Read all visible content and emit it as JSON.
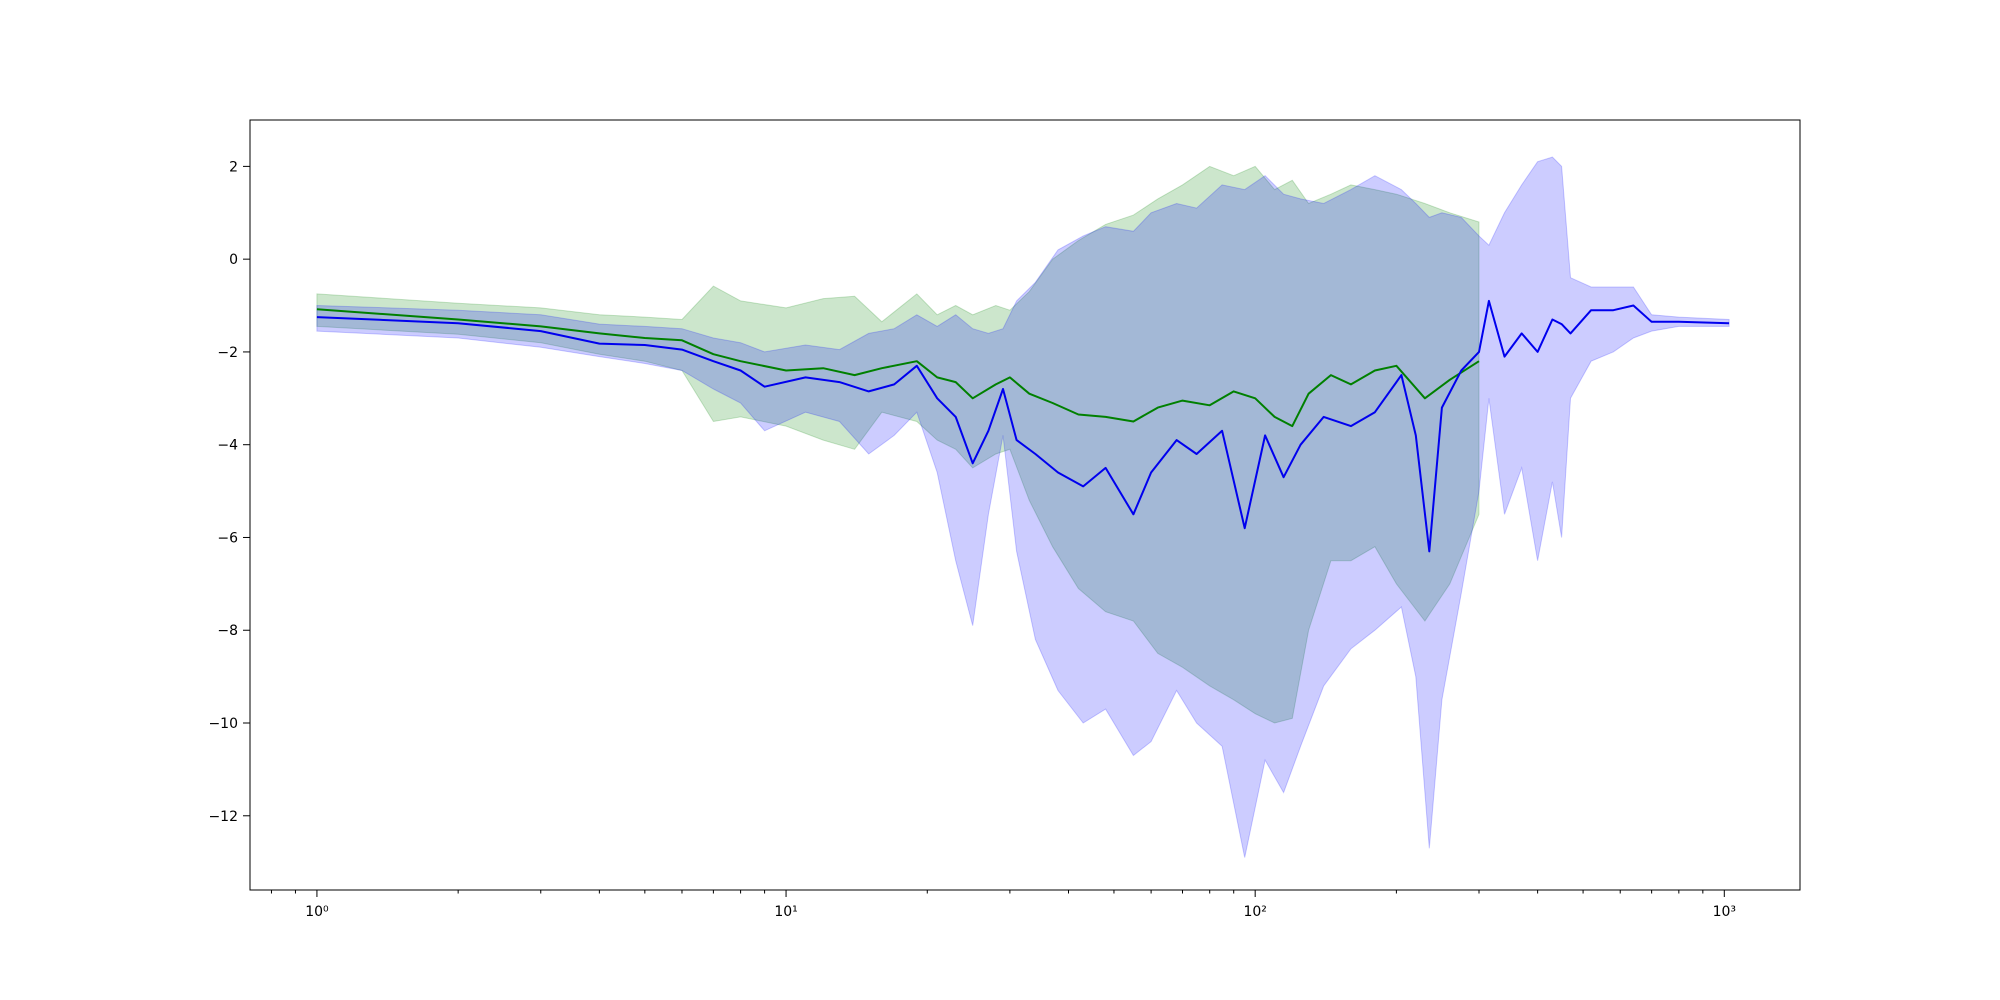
{
  "chart_data": {
    "type": "line",
    "title": "",
    "xlabel": "",
    "ylabel": "",
    "x_scale": "log",
    "xlim": [
      0.72,
      1450
    ],
    "ylim": [
      -13.6,
      3.0
    ],
    "grid": false,
    "legend": "none",
    "x_major_ticks": [
      {
        "value": 1,
        "label": "10⁰"
      },
      {
        "value": 10,
        "label": "10¹"
      },
      {
        "value": 100,
        "label": "10²"
      },
      {
        "value": 1000,
        "label": "10³"
      }
    ],
    "y_ticks": [
      {
        "value": 2,
        "label": "2"
      },
      {
        "value": 0,
        "label": "0"
      },
      {
        "value": -2,
        "label": "−2"
      },
      {
        "value": -4,
        "label": "−4"
      },
      {
        "value": -6,
        "label": "−6"
      },
      {
        "value": -8,
        "label": "−8"
      },
      {
        "value": -10,
        "label": "−10"
      },
      {
        "value": -12,
        "label": "−12"
      }
    ],
    "series": [
      {
        "color": "#008000",
        "band_color": "#008000",
        "band_opacity": 0.2,
        "points": [
          {
            "x": 1,
            "y": -1.08,
            "lo": -1.45,
            "hi": -0.75
          },
          {
            "x": 2,
            "y": -1.3,
            "lo": -1.62,
            "hi": -0.95
          },
          {
            "x": 3,
            "y": -1.45,
            "lo": -1.8,
            "hi": -1.05
          },
          {
            "x": 4,
            "y": -1.6,
            "lo": -2.05,
            "hi": -1.2
          },
          {
            "x": 5,
            "y": -1.7,
            "lo": -2.2,
            "hi": -1.25
          },
          {
            "x": 6,
            "y": -1.75,
            "lo": -2.4,
            "hi": -1.3
          },
          {
            "x": 7,
            "y": -2.05,
            "lo": -3.5,
            "hi": -0.58
          },
          {
            "x": 8,
            "y": -2.2,
            "lo": -3.4,
            "hi": -0.9
          },
          {
            "x": 10,
            "y": -2.4,
            "lo": -3.6,
            "hi": -1.05
          },
          {
            "x": 12,
            "y": -2.35,
            "lo": -3.9,
            "hi": -0.85
          },
          {
            "x": 14,
            "y": -2.5,
            "lo": -4.1,
            "hi": -0.8
          },
          {
            "x": 16,
            "y": -2.35,
            "lo": -3.3,
            "hi": -1.35
          },
          {
            "x": 19,
            "y": -2.2,
            "lo": -3.5,
            "hi": -0.75
          },
          {
            "x": 21,
            "y": -2.55,
            "lo": -3.9,
            "hi": -1.2
          },
          {
            "x": 23,
            "y": -2.65,
            "lo": -4.1,
            "hi": -1.0
          },
          {
            "x": 25,
            "y": -3.0,
            "lo": -4.5,
            "hi": -1.2
          },
          {
            "x": 28,
            "y": -2.7,
            "lo": -4.2,
            "hi": -1.0
          },
          {
            "x": 30,
            "y": -2.55,
            "lo": -4.1,
            "hi": -1.1
          },
          {
            "x": 33,
            "y": -2.9,
            "lo": -5.2,
            "hi": -0.7
          },
          {
            "x": 37,
            "y": -3.1,
            "lo": -6.2,
            "hi": 0.0
          },
          {
            "x": 42,
            "y": -3.35,
            "lo": -7.1,
            "hi": 0.4
          },
          {
            "x": 48,
            "y": -3.4,
            "lo": -7.6,
            "hi": 0.75
          },
          {
            "x": 55,
            "y": -3.5,
            "lo": -7.8,
            "hi": 0.95
          },
          {
            "x": 62,
            "y": -3.2,
            "lo": -8.5,
            "hi": 1.3
          },
          {
            "x": 70,
            "y": -3.05,
            "lo": -8.8,
            "hi": 1.6
          },
          {
            "x": 80,
            "y": -3.15,
            "lo": -9.2,
            "hi": 2.0
          },
          {
            "x": 90,
            "y": -2.85,
            "lo": -9.5,
            "hi": 1.8
          },
          {
            "x": 100,
            "y": -3.0,
            "lo": -9.8,
            "hi": 2.0
          },
          {
            "x": 110,
            "y": -3.4,
            "lo": -10.0,
            "hi": 1.5
          },
          {
            "x": 120,
            "y": -3.6,
            "lo": -9.9,
            "hi": 1.7
          },
          {
            "x": 130,
            "y": -2.9,
            "lo": -8.0,
            "hi": 1.2
          },
          {
            "x": 145,
            "y": -2.5,
            "lo": -6.5,
            "hi": 1.4
          },
          {
            "x": 160,
            "y": -2.7,
            "lo": -6.5,
            "hi": 1.6
          },
          {
            "x": 180,
            "y": -2.4,
            "lo": -6.2,
            "hi": 1.5
          },
          {
            "x": 200,
            "y": -2.3,
            "lo": -7.0,
            "hi": 1.4
          },
          {
            "x": 230,
            "y": -3.0,
            "lo": -7.8,
            "hi": 1.2
          },
          {
            "x": 260,
            "y": -2.6,
            "lo": -7.0,
            "hi": 1.0
          },
          {
            "x": 300,
            "y": -2.2,
            "lo": -5.5,
            "hi": 0.8
          }
        ]
      },
      {
        "color": "#0000ee",
        "band_color": "#0000ff",
        "band_opacity": 0.2,
        "points": [
          {
            "x": 1,
            "y": -1.25,
            "lo": -1.55,
            "hi": -1.0
          },
          {
            "x": 2,
            "y": -1.38,
            "lo": -1.7,
            "hi": -1.1
          },
          {
            "x": 3,
            "y": -1.55,
            "lo": -1.9,
            "hi": -1.2
          },
          {
            "x": 4,
            "y": -1.82,
            "lo": -2.1,
            "hi": -1.4
          },
          {
            "x": 5,
            "y": -1.85,
            "lo": -2.25,
            "hi": -1.45
          },
          {
            "x": 6,
            "y": -1.95,
            "lo": -2.4,
            "hi": -1.5
          },
          {
            "x": 7,
            "y": -2.2,
            "lo": -2.8,
            "hi": -1.7
          },
          {
            "x": 8,
            "y": -2.4,
            "lo": -3.1,
            "hi": -1.8
          },
          {
            "x": 9,
            "y": -2.75,
            "lo": -3.7,
            "hi": -2.0
          },
          {
            "x": 11,
            "y": -2.55,
            "lo": -3.3,
            "hi": -1.85
          },
          {
            "x": 13,
            "y": -2.65,
            "lo": -3.5,
            "hi": -1.95
          },
          {
            "x": 15,
            "y": -2.85,
            "lo": -4.2,
            "hi": -1.6
          },
          {
            "x": 17,
            "y": -2.7,
            "lo": -3.8,
            "hi": -1.5
          },
          {
            "x": 19,
            "y": -2.3,
            "lo": -3.3,
            "hi": -1.2
          },
          {
            "x": 21,
            "y": -3.0,
            "lo": -4.6,
            "hi": -1.45
          },
          {
            "x": 23,
            "y": -3.4,
            "lo": -6.5,
            "hi": -1.2
          },
          {
            "x": 25,
            "y": -4.4,
            "lo": -7.9,
            "hi": -1.5
          },
          {
            "x": 27,
            "y": -3.7,
            "lo": -5.5,
            "hi": -1.6
          },
          {
            "x": 29,
            "y": -2.8,
            "lo": -3.8,
            "hi": -1.5
          },
          {
            "x": 31,
            "y": -3.9,
            "lo": -6.3,
            "hi": -0.9
          },
          {
            "x": 34,
            "y": -4.2,
            "lo": -8.2,
            "hi": -0.5
          },
          {
            "x": 38,
            "y": -4.6,
            "lo": -9.3,
            "hi": 0.2
          },
          {
            "x": 43,
            "y": -4.9,
            "lo": -10.0,
            "hi": 0.5
          },
          {
            "x": 48,
            "y": -4.5,
            "lo": -9.7,
            "hi": 0.7
          },
          {
            "x": 55,
            "y": -5.5,
            "lo": -10.7,
            "hi": 0.6
          },
          {
            "x": 60,
            "y": -4.6,
            "lo": -10.4,
            "hi": 1.0
          },
          {
            "x": 68,
            "y": -3.9,
            "lo": -9.3,
            "hi": 1.2
          },
          {
            "x": 75,
            "y": -4.2,
            "lo": -10.0,
            "hi": 1.1
          },
          {
            "x": 85,
            "y": -3.7,
            "lo": -10.5,
            "hi": 1.6
          },
          {
            "x": 95,
            "y": -5.8,
            "lo": -12.9,
            "hi": 1.5
          },
          {
            "x": 105,
            "y": -3.8,
            "lo": -10.8,
            "hi": 1.8
          },
          {
            "x": 115,
            "y": -4.7,
            "lo": -11.5,
            "hi": 1.4
          },
          {
            "x": 125,
            "y": -4.0,
            "lo": -10.5,
            "hi": 1.3
          },
          {
            "x": 140,
            "y": -3.4,
            "lo": -9.2,
            "hi": 1.2
          },
          {
            "x": 160,
            "y": -3.6,
            "lo": -8.4,
            "hi": 1.5
          },
          {
            "x": 180,
            "y": -3.3,
            "lo": -8.0,
            "hi": 1.8
          },
          {
            "x": 205,
            "y": -2.5,
            "lo": -7.5,
            "hi": 1.5
          },
          {
            "x": 220,
            "y": -3.8,
            "lo": -9.0,
            "hi": 1.2
          },
          {
            "x": 235,
            "y": -6.3,
            "lo": -12.7,
            "hi": 0.9
          },
          {
            "x": 250,
            "y": -3.2,
            "lo": -9.5,
            "hi": 1.0
          },
          {
            "x": 275,
            "y": -2.4,
            "lo": -7.2,
            "hi": 0.9
          },
          {
            "x": 300,
            "y": -2.0,
            "lo": -5.0,
            "hi": 0.5
          },
          {
            "x": 315,
            "y": -0.9,
            "lo": -3.0,
            "hi": 0.3
          },
          {
            "x": 340,
            "y": -2.1,
            "lo": -5.5,
            "hi": 1.0
          },
          {
            "x": 370,
            "y": -1.6,
            "lo": -4.5,
            "hi": 1.6
          },
          {
            "x": 400,
            "y": -2.0,
            "lo": -6.5,
            "hi": 2.1
          },
          {
            "x": 430,
            "y": -1.3,
            "lo": -4.8,
            "hi": 2.2
          },
          {
            "x": 450,
            "y": -1.4,
            "lo": -6.0,
            "hi": 2.0
          },
          {
            "x": 470,
            "y": -1.6,
            "lo": -3.0,
            "hi": -0.4
          },
          {
            "x": 520,
            "y": -1.1,
            "lo": -2.2,
            "hi": -0.6
          },
          {
            "x": 580,
            "y": -1.1,
            "lo": -2.0,
            "hi": -0.6
          },
          {
            "x": 640,
            "y": -1.0,
            "lo": -1.7,
            "hi": -0.6
          },
          {
            "x": 700,
            "y": -1.35,
            "lo": -1.55,
            "hi": -1.2
          },
          {
            "x": 800,
            "y": -1.35,
            "lo": -1.45,
            "hi": -1.25
          },
          {
            "x": 1024,
            "y": -1.38,
            "lo": -1.45,
            "hi": -1.3
          }
        ]
      }
    ]
  }
}
